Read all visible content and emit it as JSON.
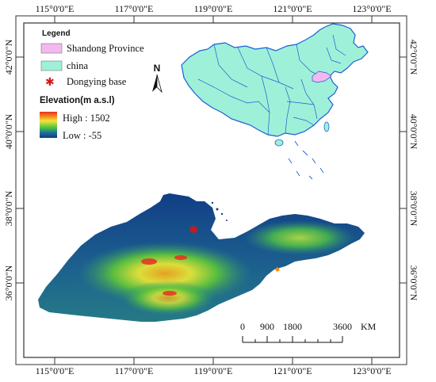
{
  "graticule": {
    "top_labels": [
      "115°0'0\"E",
      "117°0'0\"E",
      "119°0'0\"E",
      "121°0'0\"E",
      "123°0'0\"E"
    ],
    "bottom_labels": [
      "115°0'0\"E",
      "117°0'0\"E",
      "119°0'0\"E",
      "121°0'0\"E",
      "123°0'0\"E"
    ],
    "left_labels": [
      "42°0'0\"N",
      "40°0'0\"N",
      "38°0'0\"N",
      "36°0'0\"N"
    ],
    "right_labels": [
      "42°0'0\"N",
      "40°0'0\"N",
      "38°0'0\"N",
      "36°0'0\"N"
    ]
  },
  "legend": {
    "title": "Legend",
    "items": [
      {
        "label": "Shandong Province",
        "color": "#f4b8f0"
      },
      {
        "label": "china",
        "color": "#9ff0d8"
      },
      {
        "label": "Dongying base",
        "color": "#d01818"
      }
    ]
  },
  "elevation": {
    "title": "Elevation(m a.s.l)",
    "high_label": "High : 1502",
    "low_label": "Low : -55"
  },
  "north_arrow": {
    "label": "N"
  },
  "scale_bar": {
    "ticks": [
      "0",
      "900",
      "1800",
      "3600"
    ],
    "unit": "KM"
  },
  "colors": {
    "ramp": [
      "#e83020",
      "#f08c1e",
      "#f4e43a",
      "#8cd23c",
      "#3cb84a",
      "#2a9f7c",
      "#1e6e9c",
      "#0c3e80"
    ],
    "china_fill": "#9ff0d8",
    "china_stroke": "#1a5fd6",
    "shandong_fill": "#f4b8f0",
    "base_marker": "#d01818"
  }
}
